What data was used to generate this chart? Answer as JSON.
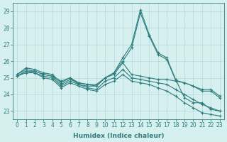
{
  "xlabel": "Humidex (Indice chaleur)",
  "x": [
    0,
    1,
    2,
    3,
    4,
    5,
    6,
    7,
    8,
    9,
    10,
    11,
    12,
    13,
    14,
    15,
    16,
    17,
    18,
    19,
    20,
    21,
    22,
    23
  ],
  "lines": [
    [
      25.2,
      25.6,
      25.5,
      25.3,
      25.2,
      24.7,
      25.0,
      24.6,
      24.5,
      24.5,
      25.0,
      25.3,
      26.2,
      27.0,
      29.1,
      27.6,
      26.5,
      26.2,
      24.9,
      23.8,
      23.5,
      23.5,
      23.1,
      23.0
    ],
    [
      25.2,
      25.5,
      25.4,
      25.2,
      25.1,
      24.8,
      25.0,
      24.7,
      24.6,
      24.6,
      25.0,
      25.3,
      26.0,
      26.8,
      28.9,
      27.5,
      26.4,
      26.1,
      24.85,
      24.7,
      24.5,
      24.2,
      24.2,
      23.8
    ],
    [
      25.1,
      25.4,
      25.4,
      25.2,
      25.1,
      24.6,
      24.9,
      24.7,
      24.6,
      24.5,
      25.0,
      25.2,
      25.9,
      25.2,
      25.1,
      25.0,
      24.9,
      24.9,
      24.8,
      24.7,
      24.5,
      24.3,
      24.3,
      23.9
    ],
    [
      25.1,
      25.4,
      25.3,
      25.1,
      25.0,
      24.5,
      24.8,
      24.6,
      24.4,
      24.3,
      24.8,
      25.0,
      25.5,
      25.0,
      24.9,
      24.8,
      24.7,
      24.6,
      24.3,
      24.0,
      23.7,
      23.4,
      23.2,
      23.0
    ],
    [
      25.1,
      25.3,
      25.3,
      25.0,
      24.9,
      24.4,
      24.7,
      24.5,
      24.3,
      24.2,
      24.6,
      24.8,
      25.2,
      24.8,
      24.7,
      24.6,
      24.4,
      24.2,
      23.9,
      23.5,
      23.2,
      22.9,
      22.8,
      22.7
    ]
  ],
  "line_color": "#2e7d7d",
  "marker": "+",
  "markersize": 3.5,
  "linewidth": 0.8,
  "ylim": [
    22.5,
    29.5
  ],
  "yticks": [
    23,
    24,
    25,
    26,
    27,
    28,
    29
  ],
  "xlim": [
    -0.5,
    23.5
  ],
  "bg_color": "#d6f0f0",
  "grid_color": "#b8d8d8",
  "grid_linewidth": 0.5,
  "tick_fontsize": 5.5,
  "xlabel_fontsize": 6.5,
  "axes_color": "#2e7d7d"
}
